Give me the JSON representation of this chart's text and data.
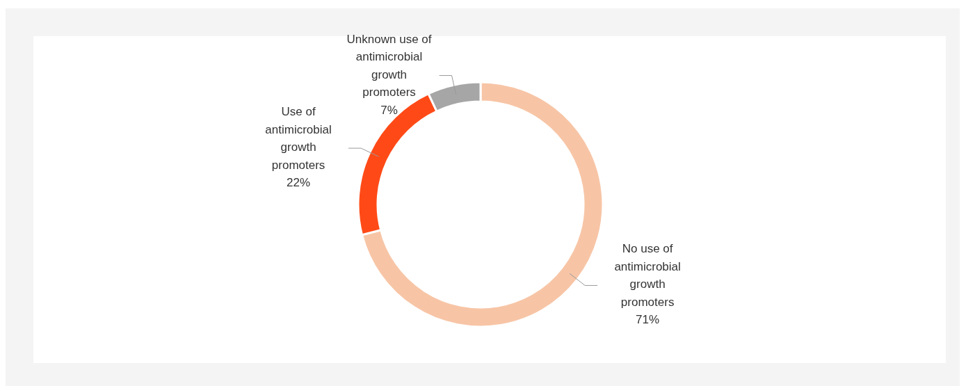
{
  "chart_data": {
    "type": "donut",
    "categories": [
      "No use of antimicrobial growth promoters",
      "Use of antimicrobial growth promoters",
      "Unknown use of antimicrobial growth promoters"
    ],
    "values": [
      71,
      22,
      7
    ],
    "value_labels": [
      "71%",
      "22%",
      "7%"
    ],
    "colors": [
      "#f7c5a6",
      "#ff4a17",
      "#a6a6a6"
    ]
  }
}
